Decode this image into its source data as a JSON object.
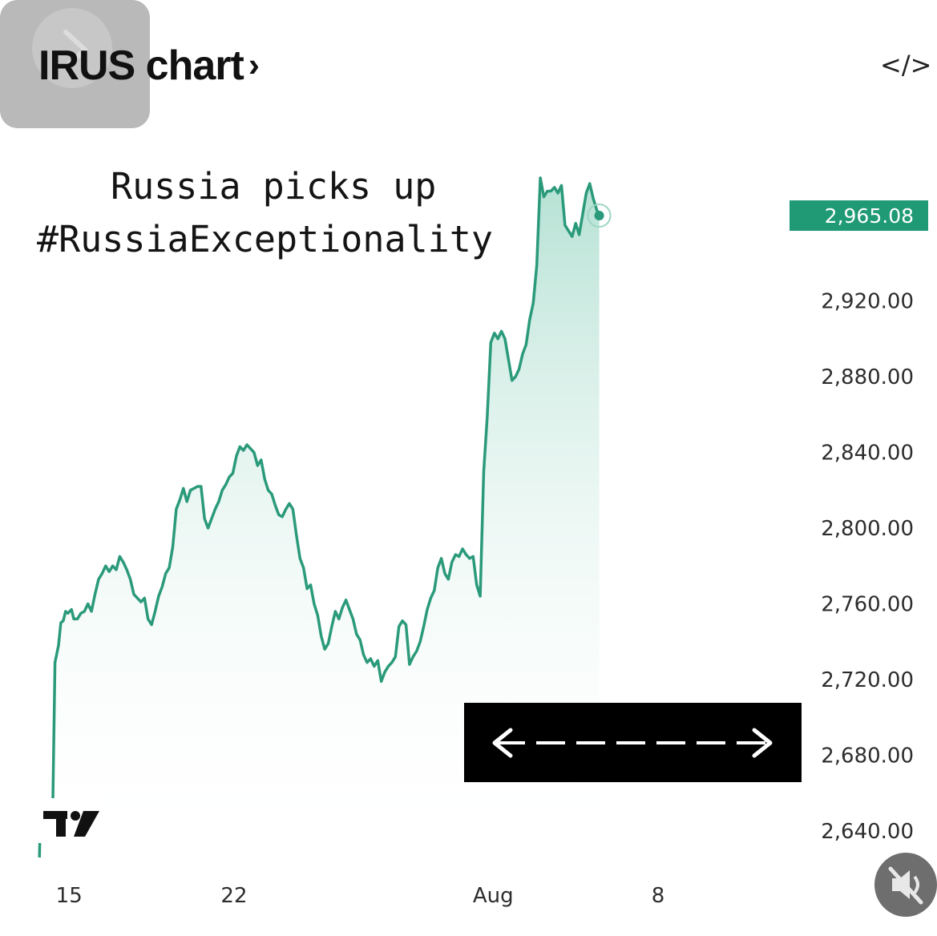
{
  "header": {
    "title": "IRUS chart",
    "chevron": "›",
    "embed_icon": "</>"
  },
  "caption": {
    "line1": "Russia picks up",
    "line2": "#RussiaExceptionality"
  },
  "colors": {
    "line": "#2a9a7a",
    "fill_top": "#a8dccc",
    "price_tag": "#1f9a74"
  },
  "icons": {
    "overlay": "chevron-right-icon",
    "embed": "code-embed-icon",
    "arrows": "double-arrow-icon",
    "logo": "tradingview-logo-icon",
    "mute": "speaker-muted-icon"
  },
  "chart_data": {
    "type": "area",
    "title": "IRUS chart",
    "ylim": [
      2626,
      2996
    ],
    "y_ticks": [
      {
        "value": 2920,
        "label": "2,920.00"
      },
      {
        "value": 2880,
        "label": "2,880.00"
      },
      {
        "value": 2840,
        "label": "2,840.00"
      },
      {
        "value": 2800,
        "label": "2,800.00"
      },
      {
        "value": 2760,
        "label": "2,760.00"
      },
      {
        "value": 2720,
        "label": "2,720.00"
      },
      {
        "value": 2680,
        "label": "2,680.00"
      },
      {
        "value": 2640,
        "label": "2,640.00"
      }
    ],
    "x_ticks": [
      {
        "t": 0.0,
        "label": "15"
      },
      {
        "t": 7.0,
        "label": "22"
      },
      {
        "t": 18.0,
        "label": "Aug"
      },
      {
        "t": 25.0,
        "label": "8"
      }
    ],
    "xlim": [
      -1.3,
      30.0
    ],
    "last_price": {
      "value": 2965.08,
      "label": "2,965.08"
    },
    "series": [
      {
        "values": [
          [
            -1.26,
            2626
          ],
          [
            -1.24,
            2637
          ],
          [
            -1.17,
            2648
          ],
          [
            -1.08,
            2649
          ],
          [
            -0.96,
            2652
          ],
          [
            -0.9,
            2647
          ],
          [
            -0.8,
            2649
          ],
          [
            -0.7,
            2646
          ],
          [
            -0.6,
            2729
          ],
          [
            -0.45,
            2738
          ],
          [
            -0.35,
            2750
          ],
          [
            -0.25,
            2751
          ],
          [
            -0.15,
            2756
          ],
          [
            -0.05,
            2755
          ],
          [
            0.1,
            2757
          ],
          [
            0.2,
            2752
          ],
          [
            0.35,
            2752
          ],
          [
            0.5,
            2755
          ],
          [
            0.65,
            2756
          ],
          [
            0.8,
            2760
          ],
          [
            0.95,
            2756
          ],
          [
            1.1,
            2765
          ],
          [
            1.25,
            2773
          ],
          [
            1.4,
            2776
          ],
          [
            1.55,
            2780
          ],
          [
            1.7,
            2777
          ],
          [
            1.85,
            2780
          ],
          [
            2.0,
            2778
          ],
          [
            2.15,
            2785
          ],
          [
            2.3,
            2782
          ],
          [
            2.45,
            2778
          ],
          [
            2.6,
            2773
          ],
          [
            2.75,
            2765
          ],
          [
            2.9,
            2763
          ],
          [
            3.05,
            2761
          ],
          [
            3.2,
            2763
          ],
          [
            3.35,
            2752
          ],
          [
            3.5,
            2749
          ],
          [
            3.65,
            2756
          ],
          [
            3.8,
            2764
          ],
          [
            3.95,
            2769
          ],
          [
            4.1,
            2776
          ],
          [
            4.25,
            2779
          ],
          [
            4.4,
            2790
          ],
          [
            4.55,
            2810
          ],
          [
            4.7,
            2815
          ],
          [
            4.85,
            2821
          ],
          [
            5.0,
            2814
          ],
          [
            5.15,
            2820
          ],
          [
            5.3,
            2821
          ],
          [
            5.45,
            2822
          ],
          [
            5.6,
            2822
          ],
          [
            5.75,
            2805
          ],
          [
            5.9,
            2800
          ],
          [
            6.05,
            2805
          ],
          [
            6.2,
            2810
          ],
          [
            6.35,
            2814
          ],
          [
            6.5,
            2820
          ],
          [
            6.65,
            2823
          ],
          [
            6.8,
            2827
          ],
          [
            6.95,
            2829
          ],
          [
            7.1,
            2838
          ],
          [
            7.25,
            2843
          ],
          [
            7.4,
            2841
          ],
          [
            7.55,
            2844
          ],
          [
            7.7,
            2842
          ],
          [
            7.85,
            2840
          ],
          [
            8.0,
            2833
          ],
          [
            8.15,
            2836
          ],
          [
            8.3,
            2826
          ],
          [
            8.45,
            2820
          ],
          [
            8.6,
            2818
          ],
          [
            8.75,
            2812
          ],
          [
            8.9,
            2807
          ],
          [
            9.05,
            2806
          ],
          [
            9.2,
            2810
          ],
          [
            9.35,
            2813
          ],
          [
            9.5,
            2810
          ],
          [
            9.65,
            2796
          ],
          [
            9.8,
            2784
          ],
          [
            9.95,
            2779
          ],
          [
            10.1,
            2768
          ],
          [
            10.25,
            2770
          ],
          [
            10.4,
            2760
          ],
          [
            10.55,
            2754
          ],
          [
            10.7,
            2743
          ],
          [
            10.85,
            2736
          ],
          [
            11.0,
            2739
          ],
          [
            11.15,
            2748
          ],
          [
            11.3,
            2756
          ],
          [
            11.45,
            2752
          ],
          [
            11.6,
            2758
          ],
          [
            11.75,
            2762
          ],
          [
            11.9,
            2757
          ],
          [
            12.05,
            2752
          ],
          [
            12.2,
            2744
          ],
          [
            12.35,
            2741
          ],
          [
            12.5,
            2733
          ],
          [
            12.65,
            2729
          ],
          [
            12.8,
            2731
          ],
          [
            12.95,
            2727
          ],
          [
            13.1,
            2730
          ],
          [
            13.25,
            2719
          ],
          [
            13.4,
            2724
          ],
          [
            13.55,
            2727
          ],
          [
            13.7,
            2729
          ],
          [
            13.85,
            2732
          ],
          [
            14.0,
            2748
          ],
          [
            14.15,
            2751
          ],
          [
            14.3,
            2749
          ],
          [
            14.45,
            2728
          ],
          [
            14.6,
            2732
          ],
          [
            14.75,
            2735
          ],
          [
            14.9,
            2740
          ],
          [
            15.05,
            2748
          ],
          [
            15.2,
            2757
          ],
          [
            15.35,
            2763
          ],
          [
            15.5,
            2767
          ],
          [
            15.65,
            2779
          ],
          [
            15.8,
            2784
          ],
          [
            15.95,
            2776
          ],
          [
            16.1,
            2773
          ],
          [
            16.25,
            2782
          ],
          [
            16.4,
            2786
          ],
          [
            16.55,
            2785
          ],
          [
            16.7,
            2789
          ],
          [
            16.85,
            2786
          ],
          [
            17.0,
            2784
          ],
          [
            17.15,
            2785
          ],
          [
            17.3,
            2770
          ],
          [
            17.45,
            2764
          ],
          [
            17.6,
            2830
          ],
          [
            17.75,
            2859
          ],
          [
            17.9,
            2898
          ],
          [
            18.05,
            2903
          ],
          [
            18.2,
            2900
          ],
          [
            18.35,
            2904
          ],
          [
            18.5,
            2900
          ],
          [
            18.65,
            2889
          ],
          [
            18.8,
            2878
          ],
          [
            18.95,
            2880
          ],
          [
            19.1,
            2884
          ],
          [
            19.25,
            2892
          ],
          [
            19.4,
            2897
          ],
          [
            19.55,
            2910
          ],
          [
            19.7,
            2919
          ],
          [
            19.85,
            2939
          ],
          [
            20.0,
            2985
          ],
          [
            20.15,
            2975
          ],
          [
            20.3,
            2978
          ],
          [
            20.45,
            2978
          ],
          [
            20.6,
            2980
          ],
          [
            20.75,
            2977
          ],
          [
            20.9,
            2981
          ],
          [
            21.05,
            2960
          ],
          [
            21.2,
            2957
          ],
          [
            21.35,
            2954
          ],
          [
            21.5,
            2961
          ],
          [
            21.65,
            2955
          ],
          [
            21.8,
            2966
          ],
          [
            21.95,
            2977
          ],
          [
            22.1,
            2982
          ],
          [
            22.25,
            2974
          ],
          [
            22.4,
            2968
          ],
          [
            22.5,
            2965
          ]
        ]
      }
    ]
  },
  "plot": {
    "x0": 48,
    "x1": 968,
    "y_top": 196,
    "y_bottom": 1070,
    "y_label_x": 1140
  }
}
